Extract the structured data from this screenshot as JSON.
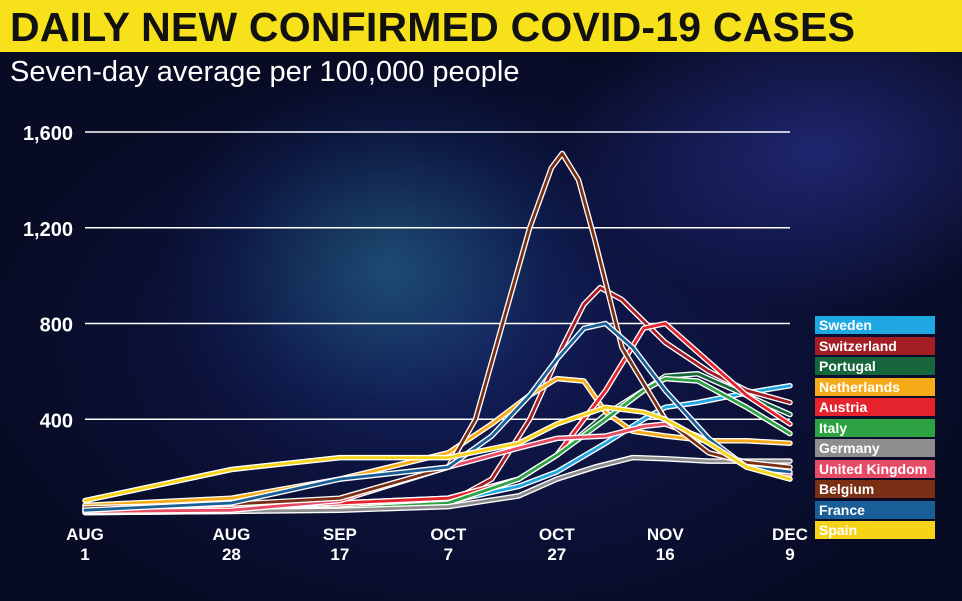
{
  "title": "DAILY NEW CONFIRMED COVID-19 CASES",
  "subtitle": "Seven-day average per 100,000 people",
  "chart_data": {
    "type": "line",
    "title": "DAILY NEW CONFIRMED COVID-19 CASES",
    "subtitle": "Seven-day average per 100,000 people",
    "xlabel": "",
    "ylabel": "",
    "ylim": [
      0,
      1600
    ],
    "yticks": [
      400,
      800,
      1200,
      1600
    ],
    "ytick_labels": [
      "400",
      "800",
      "1,200",
      "1,600"
    ],
    "xlim": [
      "2020-08-01",
      "2020-12-09"
    ],
    "xticks": [
      "2020-08-01",
      "2020-08-28",
      "2020-09-17",
      "2020-10-07",
      "2020-10-27",
      "2020-11-16",
      "2020-12-09"
    ],
    "xtick_labels": [
      [
        "AUG",
        "1"
      ],
      [
        "AUG",
        "28"
      ],
      [
        "SEP",
        "17"
      ],
      [
        "OCT",
        "7"
      ],
      [
        "OCT",
        "27"
      ],
      [
        "NOV",
        "16"
      ],
      [
        "DEC",
        "9"
      ]
    ],
    "grid": "horizontal",
    "legend_position": "right",
    "series": [
      {
        "name": "Sweden",
        "color": "#1ea7e1",
        "x": [
          "2020-08-01",
          "2020-08-28",
          "2020-09-17",
          "2020-10-07",
          "2020-10-20",
          "2020-10-27",
          "2020-11-05",
          "2020-11-12",
          "2020-11-16",
          "2020-11-22",
          "2020-12-01",
          "2020-12-09"
        ],
        "y": [
          30,
          40,
          45,
          55,
          120,
          180,
          300,
          400,
          450,
          470,
          510,
          540
        ]
      },
      {
        "name": "Switzerland",
        "color": "#a31d24",
        "x": [
          "2020-08-01",
          "2020-08-28",
          "2020-09-17",
          "2020-10-07",
          "2020-10-15",
          "2020-10-22",
          "2020-10-28",
          "2020-11-01",
          "2020-11-04",
          "2020-11-08",
          "2020-11-16",
          "2020-11-24",
          "2020-12-01",
          "2020-12-09"
        ],
        "y": [
          25,
          25,
          35,
          50,
          150,
          400,
          700,
          880,
          950,
          900,
          720,
          600,
          520,
          470
        ]
      },
      {
        "name": "Portugal",
        "color": "#17653b",
        "x": [
          "2020-08-01",
          "2020-08-28",
          "2020-09-17",
          "2020-10-07",
          "2020-10-20",
          "2020-10-27",
          "2020-11-05",
          "2020-11-12",
          "2020-11-16",
          "2020-11-22",
          "2020-12-01",
          "2020-12-09"
        ],
        "y": [
          25,
          30,
          50,
          70,
          150,
          250,
          420,
          520,
          580,
          590,
          500,
          420
        ]
      },
      {
        "name": "Netherlands",
        "color": "#f5ab17",
        "x": [
          "2020-08-01",
          "2020-08-28",
          "2020-09-17",
          "2020-10-07",
          "2020-10-15",
          "2020-10-22",
          "2020-10-27",
          "2020-11-01",
          "2020-11-05",
          "2020-11-10",
          "2020-11-16",
          "2020-11-24",
          "2020-12-01",
          "2020-12-09"
        ],
        "y": [
          40,
          70,
          150,
          260,
          380,
          500,
          570,
          560,
          430,
          350,
          330,
          310,
          310,
          300
        ]
      },
      {
        "name": "Austria",
        "color": "#e4232c",
        "x": [
          "2020-08-01",
          "2020-08-28",
          "2020-09-17",
          "2020-10-07",
          "2020-10-20",
          "2020-10-27",
          "2020-11-05",
          "2020-11-12",
          "2020-11-16",
          "2020-11-22",
          "2020-12-01",
          "2020-12-09"
        ],
        "y": [
          20,
          30,
          50,
          70,
          150,
          250,
          520,
          780,
          800,
          680,
          500,
          380
        ]
      },
      {
        "name": "Italy",
        "color": "#2ca243",
        "x": [
          "2020-08-01",
          "2020-08-28",
          "2020-09-17",
          "2020-10-07",
          "2020-10-20",
          "2020-10-27",
          "2020-11-05",
          "2020-11-12",
          "2020-11-16",
          "2020-11-22",
          "2020-12-01",
          "2020-12-09"
        ],
        "y": [
          10,
          15,
          25,
          50,
          150,
          250,
          400,
          520,
          570,
          560,
          450,
          340
        ]
      },
      {
        "name": "Germany",
        "color": "#8e8e8e",
        "x": [
          "2020-08-01",
          "2020-08-28",
          "2020-09-17",
          "2020-10-07",
          "2020-10-20",
          "2020-10-27",
          "2020-11-03",
          "2020-11-10",
          "2020-11-16",
          "2020-11-24",
          "2020-12-01",
          "2020-12-09"
        ],
        "y": [
          10,
          15,
          20,
          35,
          80,
          150,
          200,
          240,
          235,
          225,
          225,
          225
        ]
      },
      {
        "name": "United Kingdom",
        "color": "#e64b66",
        "x": [
          "2020-08-01",
          "2020-08-28",
          "2020-09-17",
          "2020-10-07",
          "2020-10-20",
          "2020-10-27",
          "2020-11-05",
          "2020-11-12",
          "2020-11-16",
          "2020-11-22",
          "2020-12-01",
          "2020-12-09"
        ],
        "y": [
          15,
          20,
          60,
          200,
          280,
          320,
          330,
          370,
          380,
          330,
          200,
          170
        ]
      },
      {
        "name": "Belgium",
        "color": "#7a2e13",
        "x": [
          "2020-08-01",
          "2020-08-28",
          "2020-09-17",
          "2020-10-07",
          "2020-10-12",
          "2020-10-17",
          "2020-10-22",
          "2020-10-26",
          "2020-10-28",
          "2020-10-31",
          "2020-11-03",
          "2020-11-08",
          "2020-11-16",
          "2020-11-24",
          "2020-12-01",
          "2020-12-09"
        ],
        "y": [
          30,
          45,
          70,
          200,
          400,
          800,
          1200,
          1450,
          1510,
          1400,
          1150,
          700,
          400,
          260,
          220,
          200
        ]
      },
      {
        "name": "France",
        "color": "#1a5e97",
        "x": [
          "2020-08-01",
          "2020-08-28",
          "2020-09-17",
          "2020-10-07",
          "2020-10-15",
          "2020-10-22",
          "2020-10-27",
          "2020-11-01",
          "2020-11-05",
          "2020-11-10",
          "2020-11-16",
          "2020-11-24",
          "2020-12-01",
          "2020-12-09"
        ],
        "y": [
          20,
          50,
          150,
          200,
          330,
          500,
          650,
          780,
          800,
          700,
          520,
          320,
          200,
          180
        ]
      },
      {
        "name": "Spain",
        "color": "#f7d318",
        "x": [
          "2020-08-01",
          "2020-08-28",
          "2020-09-17",
          "2020-10-07",
          "2020-10-20",
          "2020-10-27",
          "2020-11-05",
          "2020-11-12",
          "2020-11-16",
          "2020-11-24",
          "2020-12-01",
          "2020-12-09"
        ],
        "y": [
          60,
          190,
          240,
          240,
          300,
          380,
          450,
          430,
          400,
          300,
          200,
          150
        ]
      }
    ],
    "legend": [
      "Sweden",
      "Switzerland",
      "Portugal",
      "Netherlands",
      "Austria",
      "Italy",
      "Germany",
      "United Kingdom",
      "Belgium",
      "France",
      "Spain"
    ]
  }
}
